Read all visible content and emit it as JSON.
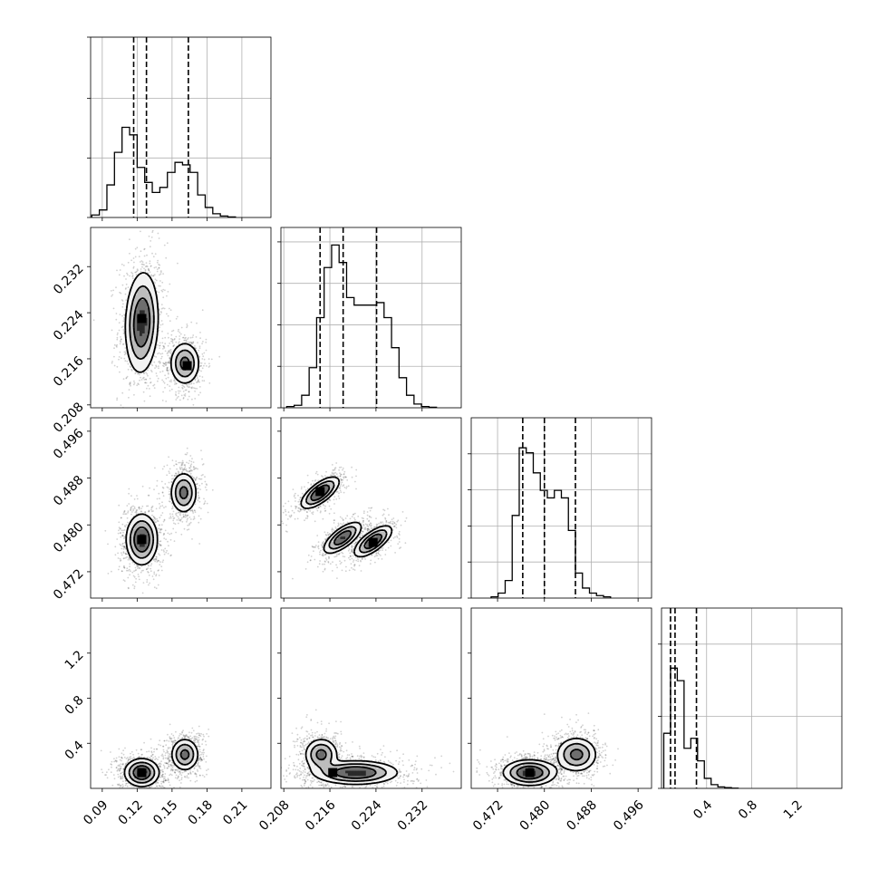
{
  "chart_data": {
    "type": "corner",
    "parameters": [
      {
        "range": [
          0.08,
          0.235
        ],
        "ticks": [
          0.09,
          0.12,
          0.15,
          0.18,
          0.21
        ],
        "tick_labels": [
          "0.09",
          "0.12",
          "0.15",
          "0.18",
          "0.21"
        ],
        "quantiles": [
          0.117,
          0.128,
          0.164
        ],
        "hist": {
          "bin_width": 0.0065,
          "heights": [
            0.01,
            0.03,
            0.13,
            0.26,
            0.36,
            0.33,
            0.2,
            0.14,
            0.1,
            0.12,
            0.18,
            0.22,
            0.21,
            0.18,
            0.09,
            0.04,
            0.015,
            0.006,
            0.002
          ],
          "bins_start": 0.081,
          "ytick_fracs": [
            0.0,
            0.33,
            0.66,
            1.0
          ]
        }
      },
      {
        "range": [
          0.2075,
          0.2388
        ],
        "ticks": [
          0.208,
          0.216,
          0.224,
          0.232
        ],
        "tick_labels": [
          "0.208",
          "0.216",
          "0.224",
          "0.232"
        ],
        "quantiles": [
          0.2143,
          0.2183,
          0.2241
        ],
        "hist": {
          "bin_width": 0.0013,
          "heights": [
            0.005,
            0.01,
            0.05,
            0.16,
            0.36,
            0.56,
            0.65,
            0.58,
            0.44,
            0.41,
            0.41,
            0.41,
            0.42,
            0.36,
            0.24,
            0.12,
            0.05,
            0.015,
            0.005,
            0.002
          ],
          "bins_start": 0.2085,
          "ytick_fracs": [
            0.0,
            0.23,
            0.46,
            0.69,
            0.92
          ]
        }
      },
      {
        "range": [
          0.4675,
          0.4983
        ],
        "ticks": [
          0.472,
          0.48,
          0.488,
          0.496
        ],
        "tick_labels": [
          "0.472",
          "0.480",
          "0.488",
          "0.496"
        ],
        "quantiles": [
          0.4763,
          0.48,
          0.4853
        ],
        "hist": {
          "bin_width": 0.0012,
          "heights": [
            0.005,
            0.02,
            0.07,
            0.33,
            0.6,
            0.58,
            0.5,
            0.43,
            0.4,
            0.43,
            0.4,
            0.27,
            0.1,
            0.04,
            0.02,
            0.01,
            0.005
          ],
          "bins_start": 0.4709,
          "ytick_fracs": [
            0.0,
            0.2,
            0.4,
            0.6,
            0.8
          ]
        }
      },
      {
        "range": [
          0.0,
          1.6
        ],
        "ticks": [
          0.4,
          0.8,
          1.2
        ],
        "tick_labels": [
          "0.4",
          "0.8",
          "1.2"
        ],
        "quantiles": [
          0.08,
          0.12,
          0.31
        ],
        "hist": {
          "bin_width": 0.06,
          "heights": [
            0.22,
            0.48,
            0.43,
            0.16,
            0.2,
            0.11,
            0.04,
            0.015,
            0.006,
            0.003,
            0.001
          ],
          "bins_start": 0.02,
          "ytick_fracs": [
            0.0,
            0.4,
            0.8
          ]
        }
      }
    ],
    "pairs": [
      {
        "row": 1,
        "col": 0,
        "clusters": [
          {
            "cx": 0.124,
            "cy": 0.2223,
            "sx": 0.0068,
            "sy": 0.0042,
            "rho": 0.1,
            "weight": 0.58
          },
          {
            "cx": 0.161,
            "cy": 0.2152,
            "sx": 0.0062,
            "sy": 0.0018,
            "rho": 0.0,
            "weight": 0.42
          }
        ],
        "peaks": [
          {
            "x": 0.124,
            "y": 0.223
          },
          {
            "x": 0.163,
            "y": 0.2148
          }
        ]
      },
      {
        "row": 2,
        "col": 0,
        "clusters": [
          {
            "cx": 0.124,
            "cy": 0.4775,
            "sx": 0.0065,
            "sy": 0.0021,
            "rho": 0.0,
            "weight": 0.58
          },
          {
            "cx": 0.16,
            "cy": 0.4855,
            "sx": 0.0055,
            "sy": 0.0017,
            "rho": 0.0,
            "weight": 0.42
          }
        ],
        "peaks": [
          {
            "x": 0.124,
            "y": 0.4775
          }
        ]
      },
      {
        "row": 2,
        "col": 1,
        "clusters": [
          {
            "cx": 0.2143,
            "cy": 0.4855,
            "sx": 0.0016,
            "sy": 0.0013,
            "rho": 0.7,
            "weight": 0.35
          },
          {
            "cx": 0.2182,
            "cy": 0.4778,
            "sx": 0.0016,
            "sy": 0.0013,
            "rho": 0.7,
            "weight": 0.32
          },
          {
            "cx": 0.2235,
            "cy": 0.4772,
            "sx": 0.0016,
            "sy": 0.0013,
            "rho": 0.7,
            "weight": 0.33
          }
        ],
        "peaks": [
          {
            "x": 0.2143,
            "y": 0.4857
          },
          {
            "x": 0.2235,
            "y": 0.477
          }
        ]
      },
      {
        "row": 3,
        "col": 0,
        "clusters": [
          {
            "cx": 0.124,
            "cy": 0.14,
            "sx": 0.0072,
            "sy": 0.06,
            "rho": 0.0,
            "weight": 0.58
          },
          {
            "cx": 0.161,
            "cy": 0.3,
            "sx": 0.0058,
            "sy": 0.07,
            "rho": 0.0,
            "weight": 0.42
          }
        ],
        "peaks": [
          {
            "x": 0.124,
            "y": 0.14
          }
        ]
      },
      {
        "row": 3,
        "col": 1,
        "clusters": [
          {
            "cx": 0.2145,
            "cy": 0.3,
            "sx": 0.0014,
            "sy": 0.07,
            "rho": 0.0,
            "weight": 0.42
          },
          {
            "cx": 0.2205,
            "cy": 0.14,
            "sx": 0.0035,
            "sy": 0.05,
            "rho": 0.0,
            "weight": 0.58
          }
        ],
        "peaks": [
          {
            "x": 0.2165,
            "y": 0.14
          }
        ]
      },
      {
        "row": 3,
        "col": 2,
        "clusters": [
          {
            "cx": 0.4775,
            "cy": 0.14,
            "sx": 0.0022,
            "sy": 0.055,
            "rho": 0.0,
            "weight": 0.58
          },
          {
            "cx": 0.4855,
            "cy": 0.3,
            "sx": 0.0017,
            "sy": 0.075,
            "rho": 0.0,
            "weight": 0.42
          }
        ],
        "peaks": [
          {
            "x": 0.4775,
            "y": 0.14
          }
        ]
      }
    ],
    "contour_levels": [
      0.12,
      0.32,
      0.6
    ],
    "grid": true,
    "legend": "none"
  }
}
